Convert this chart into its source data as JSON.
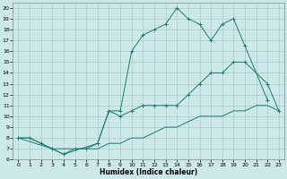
{
  "xlabel": "Humidex (Indice chaleur)",
  "bg_color": "#cce8e8",
  "grid_color": "#aacccc",
  "line_color": "#1e7b6e",
  "xlim": [
    -0.5,
    23.5
  ],
  "ylim": [
    6,
    20.5
  ],
  "xticks": [
    0,
    1,
    2,
    3,
    4,
    5,
    6,
    7,
    8,
    9,
    10,
    11,
    12,
    13,
    14,
    15,
    16,
    17,
    18,
    19,
    20,
    21,
    22,
    23
  ],
  "yticks": [
    6,
    7,
    8,
    9,
    10,
    11,
    12,
    13,
    14,
    15,
    16,
    17,
    18,
    19,
    20
  ],
  "line1_x": [
    0,
    1,
    2,
    3,
    4,
    5,
    6,
    7,
    8,
    9,
    10,
    11,
    12,
    13,
    14,
    15,
    16,
    17,
    18,
    19,
    20,
    21,
    22,
    23
  ],
  "line1_y": [
    8,
    8,
    7.5,
    7,
    7,
    7,
    7,
    7,
    7.5,
    7.5,
    8,
    8,
    8.5,
    9,
    9,
    9.5,
    10,
    10,
    10,
    10.5,
    10.5,
    11,
    11,
    10.5
  ],
  "line2_x": [
    0,
    1,
    2,
    3,
    4,
    5,
    6,
    7,
    8,
    9,
    10,
    11,
    12,
    13,
    14,
    15,
    16,
    17,
    18,
    19,
    20,
    22,
    23
  ],
  "line2_y": [
    8,
    8,
    7.5,
    7,
    6.5,
    7,
    7,
    7.5,
    10.5,
    10,
    10.5,
    11,
    11,
    11,
    11,
    12,
    13,
    14,
    14,
    15,
    15,
    13,
    10.5
  ],
  "line3_x": [
    0,
    3,
    4,
    7,
    8,
    9,
    10,
    11,
    12,
    13,
    14,
    15,
    16,
    17,
    18,
    19,
    20,
    22
  ],
  "line3_y": [
    8,
    7,
    6.5,
    7.5,
    10.5,
    10.5,
    16,
    17.5,
    18,
    18.5,
    20,
    19,
    18.5,
    17,
    18.5,
    19,
    16.5,
    11.5
  ]
}
